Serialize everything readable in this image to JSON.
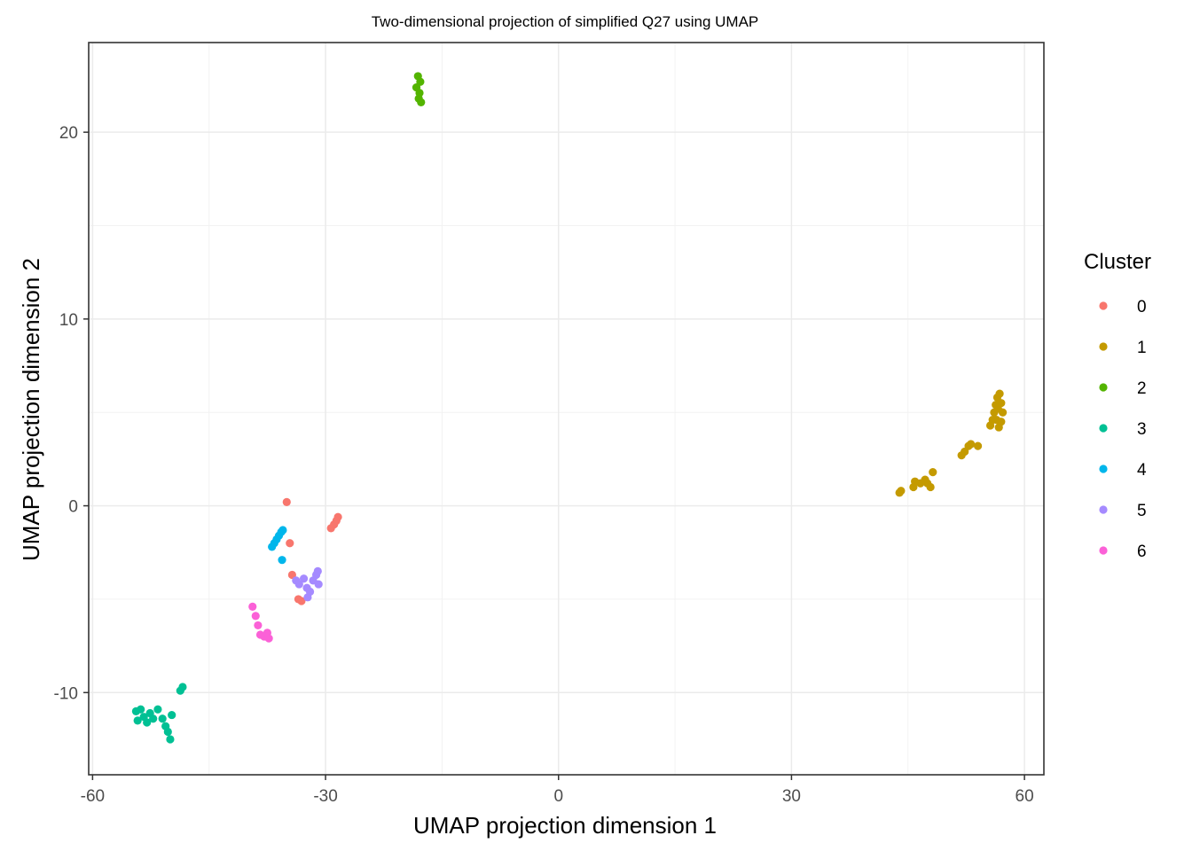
{
  "chart_data": {
    "type": "scatter",
    "title": "Two-dimensional projection of simplified Q27 using UMAP",
    "xlabel": "UMAP projection dimension 1",
    "ylabel": "UMAP projection dimension 2",
    "xlim": [
      -60.5,
      62.5
    ],
    "ylim": [
      -14.4,
      24.8
    ],
    "x_ticks": [
      -60,
      -30,
      0,
      30,
      60
    ],
    "x_tick_labels": [
      "-60",
      "-30",
      "0",
      "30",
      "60"
    ],
    "y_ticks": [
      -10,
      0,
      10,
      20
    ],
    "y_tick_labels": [
      "-10",
      "0",
      "10",
      "20"
    ],
    "x_minor_ticks": [
      -45,
      -15,
      15,
      45
    ],
    "y_minor_ticks": [
      -5,
      5,
      15
    ],
    "grid": true,
    "legend": {
      "title": "Cluster",
      "position": "right"
    },
    "series": [
      {
        "name": "0",
        "color": "#F8766D",
        "points": [
          [
            -35.0,
            0.2
          ],
          [
            -34.6,
            -2.0
          ],
          [
            -34.3,
            -3.7
          ],
          [
            -33.5,
            -5.0
          ],
          [
            -33.1,
            -5.1
          ],
          [
            -29.3,
            -1.2
          ],
          [
            -28.9,
            -1.0
          ],
          [
            -28.6,
            -0.8
          ],
          [
            -28.4,
            -0.6
          ]
        ]
      },
      {
        "name": "1",
        "color": "#C49A00",
        "points": [
          [
            43.9,
            0.7
          ],
          [
            44.1,
            0.8
          ],
          [
            45.7,
            1.0
          ],
          [
            45.9,
            1.3
          ],
          [
            46.6,
            1.2
          ],
          [
            47.2,
            1.4
          ],
          [
            47.5,
            1.2
          ],
          [
            47.9,
            1.0
          ],
          [
            48.2,
            1.8
          ],
          [
            51.9,
            2.7
          ],
          [
            52.3,
            2.9
          ],
          [
            52.8,
            3.2
          ],
          [
            53.1,
            3.3
          ],
          [
            54.0,
            3.2
          ],
          [
            55.6,
            4.3
          ],
          [
            55.9,
            4.6
          ],
          [
            56.1,
            5.0
          ],
          [
            56.3,
            5.4
          ],
          [
            56.5,
            5.8
          ],
          [
            56.8,
            6.0
          ],
          [
            57.0,
            5.5
          ],
          [
            57.2,
            5.0
          ],
          [
            57.0,
            4.5
          ],
          [
            56.7,
            4.2
          ],
          [
            56.4,
            4.6
          ],
          [
            56.6,
            5.2
          ]
        ]
      },
      {
        "name": "2",
        "color": "#53B400",
        "points": [
          [
            -18.1,
            23.0
          ],
          [
            -17.8,
            22.7
          ],
          [
            -18.3,
            22.4
          ],
          [
            -17.9,
            22.1
          ],
          [
            -18.0,
            21.8
          ],
          [
            -17.7,
            21.6
          ]
        ]
      },
      {
        "name": "3",
        "color": "#00C094",
        "points": [
          [
            -54.4,
            -11.0
          ],
          [
            -54.2,
            -11.5
          ],
          [
            -53.8,
            -10.9
          ],
          [
            -53.4,
            -11.3
          ],
          [
            -53.0,
            -11.6
          ],
          [
            -52.6,
            -11.1
          ],
          [
            -52.2,
            -11.4
          ],
          [
            -51.6,
            -10.9
          ],
          [
            -51.0,
            -11.4
          ],
          [
            -50.6,
            -11.8
          ],
          [
            -50.3,
            -12.1
          ],
          [
            -50.0,
            -12.5
          ],
          [
            -49.8,
            -11.2
          ],
          [
            -48.7,
            -9.9
          ],
          [
            -48.4,
            -9.7
          ]
        ]
      },
      {
        "name": "4",
        "color": "#00B6EB",
        "points": [
          [
            -36.9,
            -2.2
          ],
          [
            -36.6,
            -2.0
          ],
          [
            -36.3,
            -1.8
          ],
          [
            -36.0,
            -1.6
          ],
          [
            -35.7,
            -1.4
          ],
          [
            -35.5,
            -1.3
          ],
          [
            -35.6,
            -2.9
          ]
        ]
      },
      {
        "name": "5",
        "color": "#A58AFF",
        "points": [
          [
            -33.8,
            -4.0
          ],
          [
            -33.4,
            -4.2
          ],
          [
            -32.8,
            -3.9
          ],
          [
            -32.4,
            -4.4
          ],
          [
            -32.0,
            -4.6
          ],
          [
            -31.6,
            -4.0
          ],
          [
            -31.2,
            -3.7
          ],
          [
            -30.9,
            -4.2
          ],
          [
            -31.0,
            -3.5
          ],
          [
            -32.3,
            -4.9
          ]
        ]
      },
      {
        "name": "6",
        "color": "#FB61D7",
        "points": [
          [
            -39.4,
            -5.4
          ],
          [
            -39.0,
            -5.9
          ],
          [
            -38.7,
            -6.4
          ],
          [
            -38.4,
            -6.9
          ],
          [
            -37.9,
            -7.0
          ],
          [
            -37.5,
            -6.8
          ],
          [
            -37.3,
            -7.1
          ]
        ]
      }
    ]
  }
}
